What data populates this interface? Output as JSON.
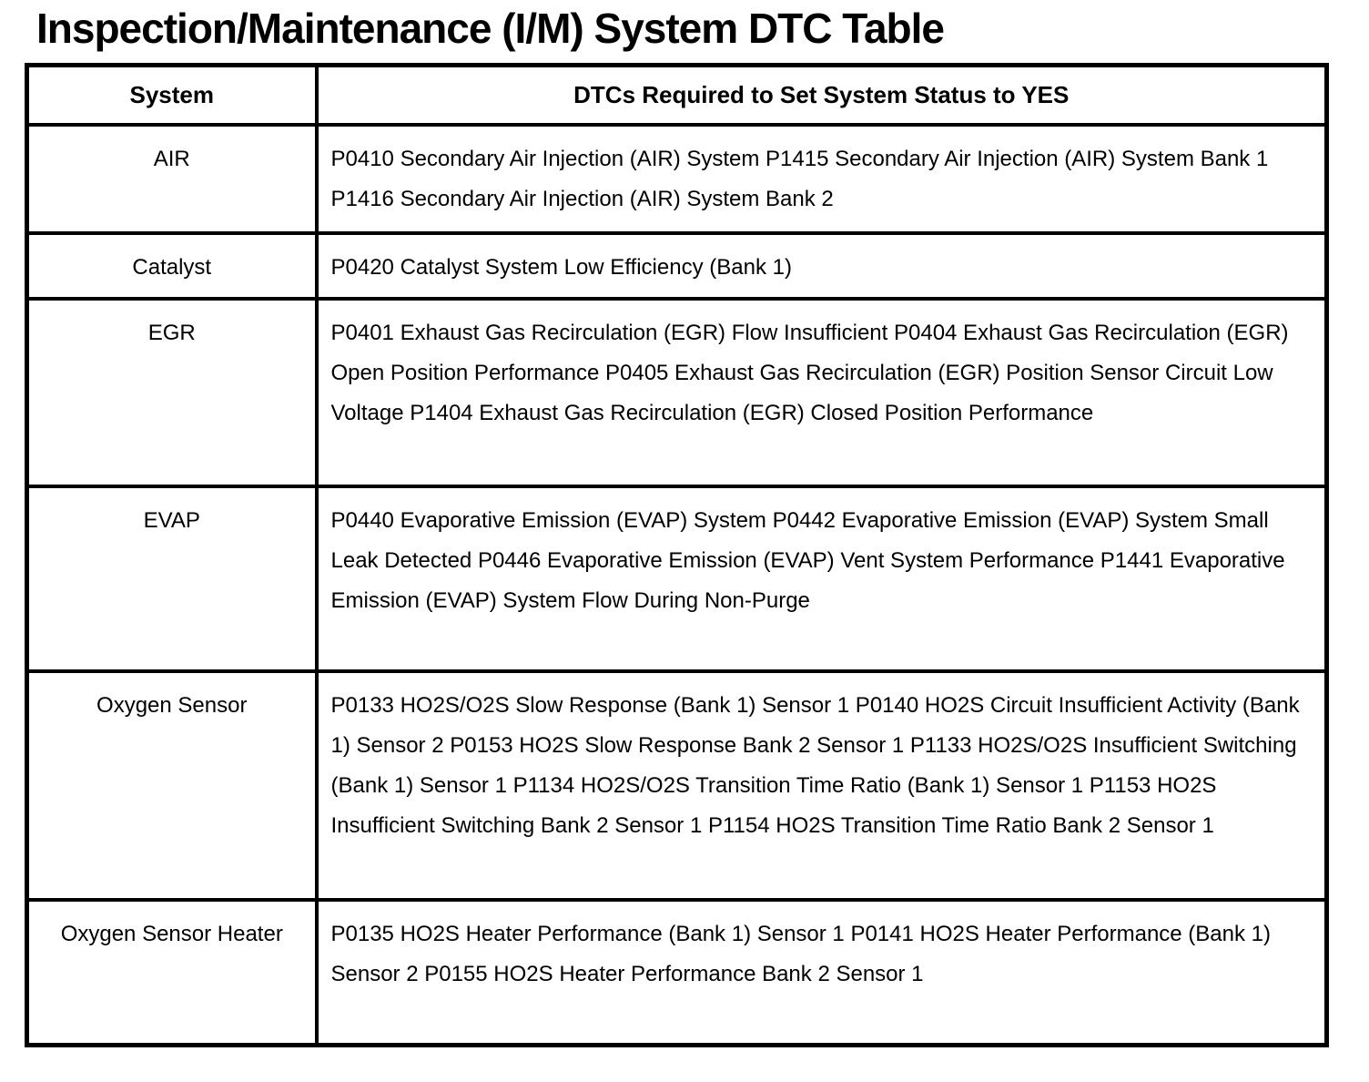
{
  "page_title": "Inspection/Maintenance (I/M) System DTC Table",
  "colors": {
    "text": "#000000",
    "border": "#000000",
    "background": "#ffffff"
  },
  "table": {
    "headers": [
      "System",
      "DTCs Required to Set System Status to YES"
    ],
    "rows": [
      {
        "system": "AIR",
        "dtcs": "P0410 Secondary Air Injection (AIR) System P1415 Secondary Air Injection (AIR) System Bank 1 P1416 Secondary Air Injection (AIR) System Bank 2"
      },
      {
        "system": "Catalyst",
        "dtcs": "P0420 Catalyst System Low Efficiency (Bank 1)"
      },
      {
        "system": "EGR",
        "dtcs": "P0401 Exhaust Gas Recirculation (EGR) Flow Insufficient P0404 Exhaust Gas Recirculation (EGR) Open Position Performance P0405 Exhaust Gas Recirculation (EGR) Position Sensor Circuit Low Voltage P1404 Exhaust Gas Recirculation (EGR) Closed Position Performance"
      },
      {
        "system": "EVAP",
        "dtcs": "P0440 Evaporative Emission (EVAP) System P0442 Evaporative Emission (EVAP) System Small Leak Detected P0446 Evaporative Emission (EVAP) Vent System Performance P1441 Evaporative Emission (EVAP) System Flow During Non-Purge"
      },
      {
        "system": "Oxygen Sensor",
        "dtcs": "P0133 HO2S/O2S Slow Response (Bank 1) Sensor 1 P0140 HO2S Circuit Insufficient Activity (Bank 1) Sensor 2 P0153 HO2S Slow Response Bank 2 Sensor 1 P1133 HO2S/O2S Insufficient Switching (Bank 1) Sensor 1 P1134 HO2S/O2S Transition Time Ratio (Bank 1) Sensor 1 P1153 HO2S Insufficient Switching Bank 2 Sensor 1 P1154 HO2S Transition Time Ratio Bank 2 Sensor 1"
      },
      {
        "system": "Oxygen Sensor Heater",
        "dtcs": "P0135 HO2S Heater Performance (Bank 1) Sensor 1 P0141 HO2S Heater Performance (Bank 1) Sensor 2 P0155 HO2S Heater Performance Bank 2 Sensor 1"
      }
    ]
  }
}
